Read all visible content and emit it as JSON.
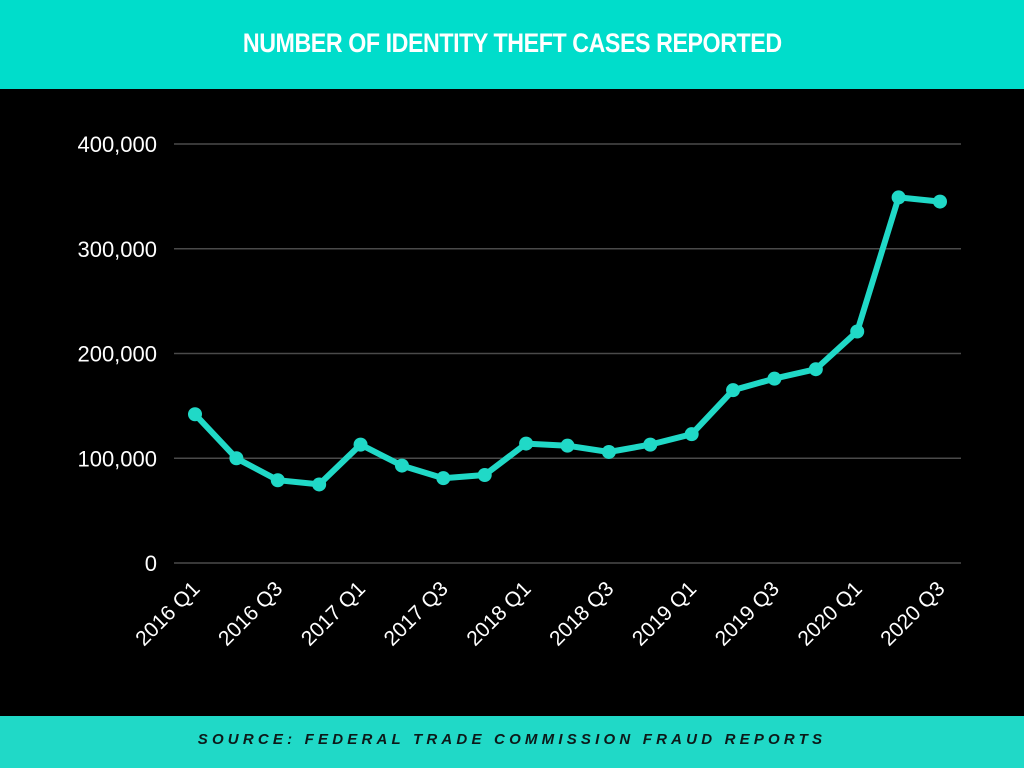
{
  "header": {
    "title": "NUMBER OF IDENTITY THEFT CASES REPORTED"
  },
  "footer": {
    "source": "SOURCE: FEDERAL TRADE COMMISSION FRAUD REPORTS"
  },
  "colors": {
    "header_bg": "#00ddcb",
    "footer_bg": "#20d9c7",
    "background": "#000000",
    "line": "#20d9c7",
    "gridline": "#4a4a4a",
    "text": "#ffffff"
  },
  "chart_data": {
    "type": "line",
    "title": "NUMBER OF IDENTITY THEFT CASES REPORTED",
    "xlabel": "",
    "ylabel": "",
    "ylim": [
      0,
      400000
    ],
    "yticks": [
      0,
      100000,
      200000,
      300000,
      400000
    ],
    "ytick_labels": [
      "0",
      "100,000",
      "200,000",
      "300,000",
      "400,000"
    ],
    "grid": true,
    "legend": "none",
    "x": [
      "2016 Q1",
      "2016 Q2",
      "2016 Q3",
      "2016 Q4",
      "2017 Q1",
      "2017 Q2",
      "2017 Q3",
      "2017 Q4",
      "2018 Q1",
      "2018 Q2",
      "2018 Q3",
      "2018 Q4",
      "2019 Q1",
      "2019 Q2",
      "2019 Q3",
      "2019 Q4",
      "2020 Q1",
      "2020 Q2",
      "2020 Q3"
    ],
    "xtick_labels": [
      "2016 Q1",
      "2016 Q3",
      "2017 Q1",
      "2017 Q3",
      "2018 Q1",
      "2018 Q3",
      "2019 Q1",
      "2019 Q3",
      "2020 Q1",
      "2020 Q3"
    ],
    "series": [
      {
        "name": "Identity theft cases",
        "values": [
          142000,
          100000,
          79000,
          75000,
          113000,
          93000,
          81000,
          84000,
          114000,
          112000,
          106000,
          113000,
          123000,
          165000,
          176000,
          185000,
          221000,
          349000,
          345000
        ]
      }
    ],
    "source": "SOURCE: FEDERAL TRADE COMMISSION FRAUD REPORTS"
  }
}
